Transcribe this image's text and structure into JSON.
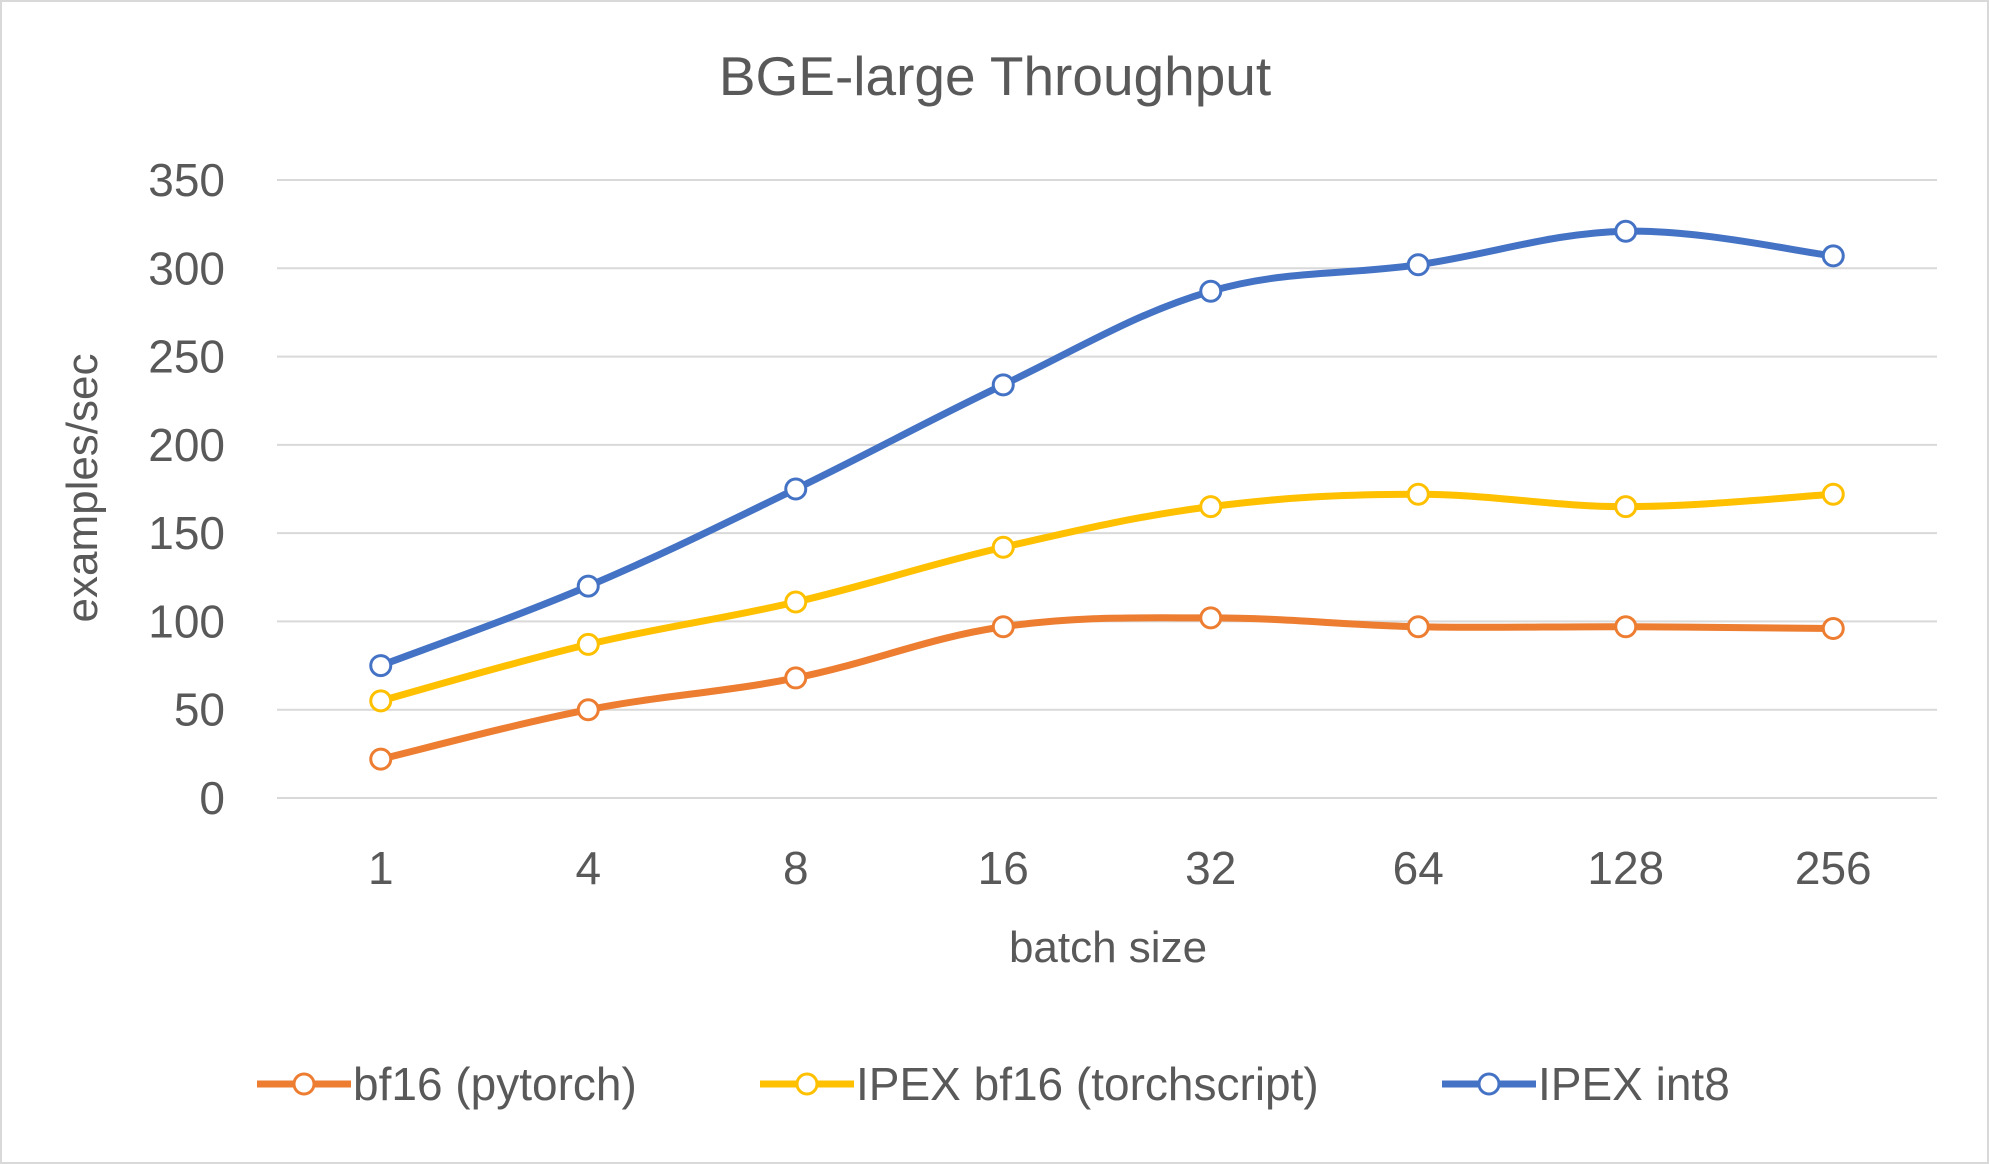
{
  "chart_data": {
    "type": "line",
    "title": "BGE-large Throughput",
    "xlabel": "batch size",
    "ylabel": "examples/sec",
    "categories": [
      "1",
      "4",
      "8",
      "16",
      "32",
      "64",
      "128",
      "256"
    ],
    "ylim": [
      0,
      350
    ],
    "yticks": [
      0,
      50,
      100,
      150,
      200,
      250,
      300,
      350
    ],
    "grid": true,
    "legend_position": "bottom",
    "series": [
      {
        "name": "bf16 (pytorch)",
        "color": "#ED7D31",
        "values": [
          22,
          50,
          68,
          97,
          102,
          97,
          97,
          96
        ]
      },
      {
        "name": "IPEX bf16 (torchscript)",
        "color": "#FFC000",
        "values": [
          55,
          87,
          111,
          142,
          165,
          172,
          165,
          172
        ]
      },
      {
        "name": "IPEX int8",
        "color": "#4472C4",
        "values": [
          75,
          120,
          175,
          234,
          287,
          302,
          321,
          307
        ]
      }
    ]
  }
}
